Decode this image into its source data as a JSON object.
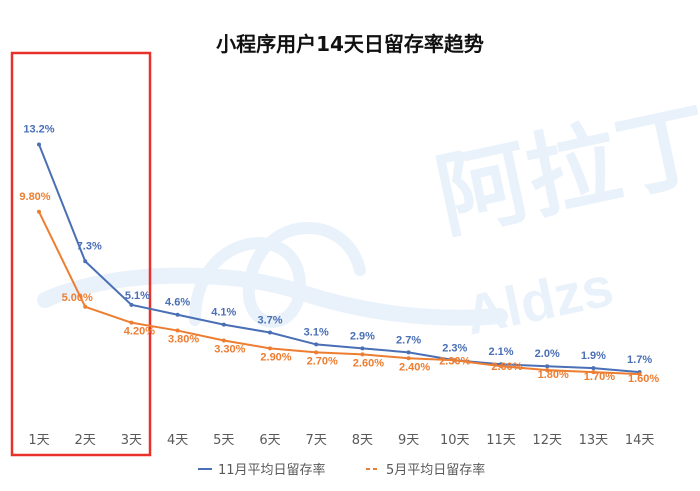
{
  "chart_data": {
    "type": "line",
    "title": "小程序用户14天日留存率趋势",
    "categories": [
      "1天",
      "2天",
      "3天",
      "4天",
      "5天",
      "6天",
      "7天",
      "8天",
      "9天",
      "10天",
      "11天",
      "12天",
      "13天",
      "14天"
    ],
    "series": [
      {
        "name": "11月平均日留存率",
        "color": "#4a6fb5",
        "values": [
          13.2,
          7.3,
          5.1,
          4.6,
          4.1,
          3.7,
          3.1,
          2.9,
          2.7,
          2.3,
          2.1,
          2.0,
          1.9,
          1.7
        ],
        "labels": [
          "13.2%",
          "7.3%",
          "5.1%",
          "4.6%",
          "4.1%",
          "3.7%",
          "3.1%",
          "2.9%",
          "2.7%",
          "2.3%",
          "2.1%",
          "2.0%",
          "1.9%",
          "1.7%"
        ]
      },
      {
        "name": "5月平均日留存率",
        "color": "#ed7d31",
        "values": [
          9.8,
          5.0,
          4.2,
          3.8,
          3.3,
          2.9,
          2.7,
          2.6,
          2.4,
          2.3,
          2.0,
          1.8,
          1.7,
          1.6
        ],
        "labels": [
          "9.80%",
          "5.00%",
          "4.20%",
          "3.80%",
          "3.30%",
          "2.90%",
          "2.70%",
          "2.60%",
          "2.40%",
          "2.30%",
          "2.00%",
          "1.80%",
          "1.70%",
          "1.60%"
        ]
      }
    ],
    "xlabel": "",
    "ylabel": "",
    "legend_position": "bottom",
    "grid": false
  },
  "highlight": {
    "color": "#e8312a"
  },
  "watermark": {
    "text_cn": "阿拉丁",
    "text_en": "Aldzs",
    "color": "#4a90d9"
  }
}
